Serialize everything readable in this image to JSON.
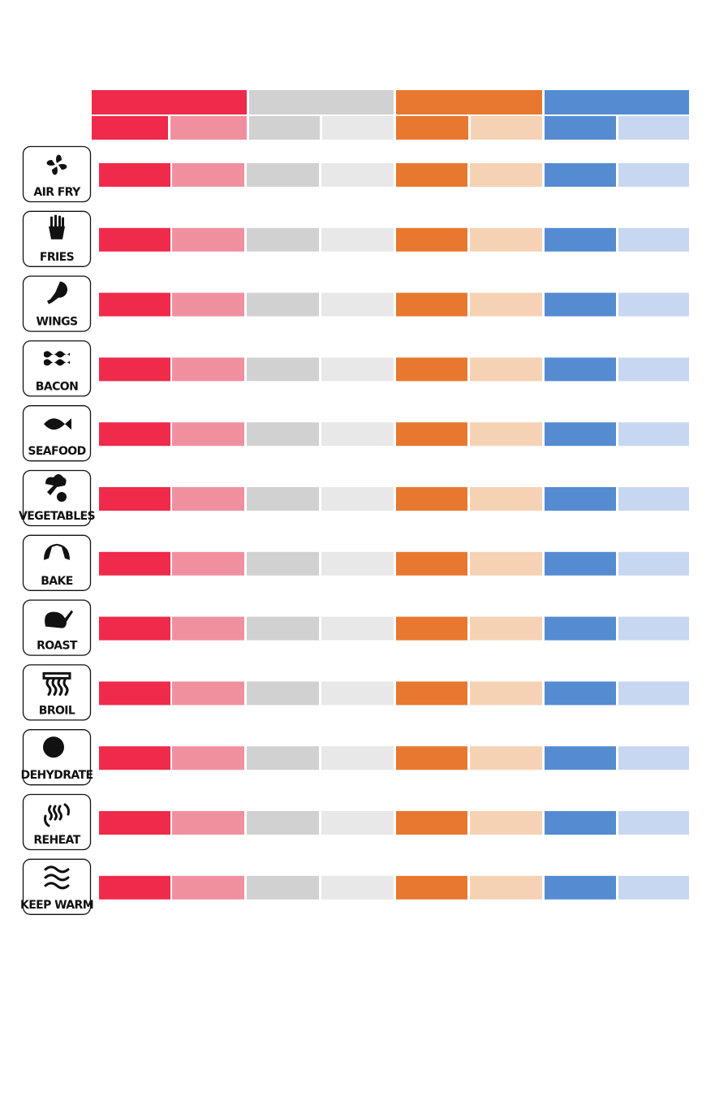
{
  "rows": [
    {
      "label": "AIR FRY"
    },
    {
      "label": "FRIES"
    },
    {
      "label": "WINGS"
    },
    {
      "label": "BACON"
    },
    {
      "label": "SEAFOOD"
    },
    {
      "label": "VEGETABLES"
    },
    {
      "label": "BAKE"
    },
    {
      "label": "ROAST"
    },
    {
      "label": "BROIL"
    },
    {
      "label": "DEHYDRATE"
    },
    {
      "label": "REHEAT"
    },
    {
      "label": "KEEP WARM"
    }
  ]
}
